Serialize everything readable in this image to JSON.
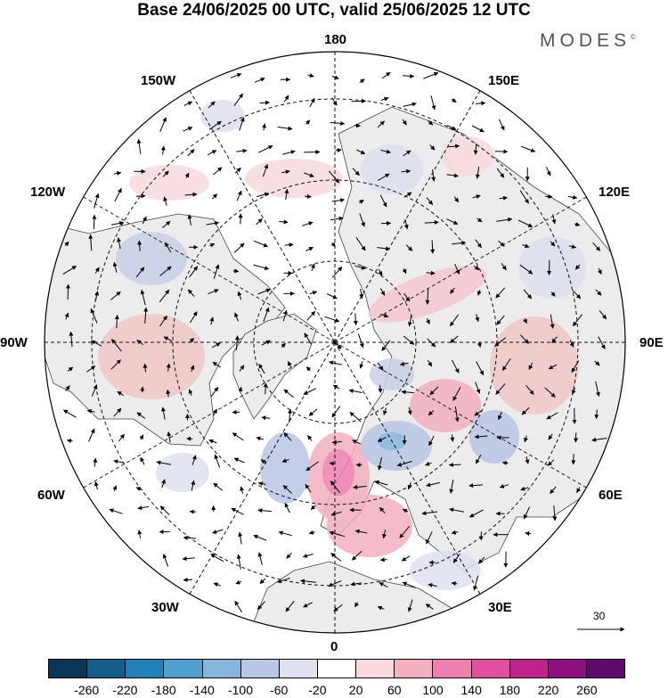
{
  "title": "Base 24/06/2025 00 UTC, valid 25/06/2025 12 UTC",
  "logo": "MODES",
  "logo_mark": "©",
  "lon_labels": [
    "180",
    "150E",
    "120E",
    "90E",
    "60E",
    "30E",
    "0",
    "30W",
    "60W",
    "90W",
    "120W",
    "150W"
  ],
  "colorbar": {
    "colors": [
      "#0b3556",
      "#165e8a",
      "#2280b8",
      "#4f9fcf",
      "#87b5dc",
      "#b9c6e4",
      "#dfe0f0",
      "#ffffff",
      "#fadadd",
      "#f5b0c0",
      "#ee7fae",
      "#e14f9f",
      "#c0218b",
      "#8e0f7e",
      "#5d0a6e"
    ],
    "labels": [
      "-260",
      "-220",
      "-180",
      "-140",
      "-100",
      "-60",
      "-20",
      "20",
      "60",
      "100",
      "140",
      "180",
      "220",
      "260"
    ]
  },
  "reference_vector": "30",
  "colors": {
    "land": "#ececec",
    "ocean": "#ffffff",
    "coast": "#333333",
    "grid": "#111111"
  }
}
